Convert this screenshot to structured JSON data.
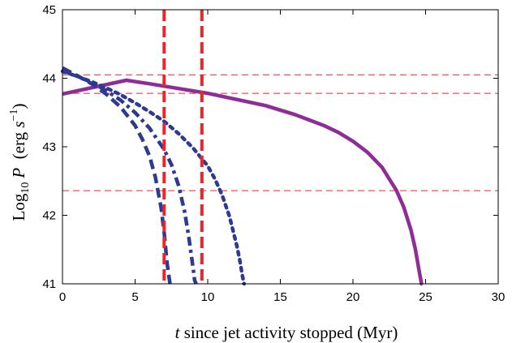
{
  "chart_data": {
    "type": "line",
    "xlabel": {
      "var": "t",
      "rest": " since jet activity stopped (Myr)"
    },
    "ylabel": {
      "pre": "Log",
      "sub": "10",
      "var": "P",
      "unit_open": "  (erg ",
      "unit_var": "s",
      "unit_exp": "−1",
      "unit_close": ")"
    },
    "xlim": [
      0,
      30
    ],
    "ylim": [
      41,
      45
    ],
    "xticks": [
      0,
      5,
      10,
      15,
      20,
      25,
      30
    ],
    "yticks": [
      41,
      42,
      43,
      44,
      45
    ],
    "grid": false,
    "series": [
      {
        "style": "solid",
        "color": "#8e2d96",
        "x": [
          0,
          4.4,
          6,
          8,
          10,
          12,
          14,
          16,
          18,
          19,
          20,
          21,
          22,
          23,
          23.5,
          24,
          24.3,
          24.55,
          24.72,
          24.78
        ],
        "y": [
          43.77,
          43.97,
          43.92,
          43.85,
          43.78,
          43.69,
          43.6,
          43.47,
          43.31,
          43.21,
          43.08,
          42.92,
          42.7,
          42.36,
          42.12,
          41.78,
          41.5,
          41.2,
          41.0,
          41.0
        ]
      },
      {
        "style": "dotted",
        "color": "#2e3a92",
        "x": [
          0,
          1,
          2,
          3,
          4,
          5,
          6,
          7,
          8,
          9,
          10,
          10.5,
          11,
          11.5,
          12,
          12.2,
          12.4,
          12.5
        ],
        "y": [
          44.1,
          44.03,
          43.95,
          43.86,
          43.76,
          43.64,
          43.51,
          43.37,
          43.19,
          42.98,
          42.72,
          42.53,
          42.29,
          41.98,
          41.56,
          41.35,
          41.1,
          41.0
        ]
      },
      {
        "style": "dashdot",
        "color": "#2e3a92",
        "x": [
          0,
          1,
          2,
          3,
          4,
          5,
          6,
          7,
          7.5,
          8,
          8.4,
          8.7,
          9,
          9.1,
          9.2
        ],
        "y": [
          44.12,
          44.03,
          43.94,
          43.82,
          43.68,
          43.5,
          43.27,
          42.96,
          42.74,
          42.43,
          42.06,
          41.68,
          41.22,
          41.05,
          41.0
        ]
      },
      {
        "style": "dashed",
        "color": "#2e3a92",
        "x": [
          0,
          1,
          2,
          3,
          4,
          5,
          5.5,
          6,
          6.4,
          6.8,
          7.0,
          7.2,
          7.4
        ],
        "y": [
          44.15,
          44.04,
          43.92,
          43.77,
          43.58,
          43.31,
          43.11,
          42.86,
          42.55,
          42.1,
          41.75,
          41.3,
          41.0
        ]
      }
    ],
    "vlines": [
      {
        "x": 7.0,
        "color": "#e8262b",
        "style": "dashed"
      },
      {
        "x": 9.6,
        "color": "#e8262b",
        "style": "dashed"
      }
    ],
    "hlines": [
      {
        "y": 44.05,
        "color": "#e8262b",
        "style": "dashed"
      },
      {
        "y": 43.78,
        "color": "#e8262b",
        "style": "dashed"
      },
      {
        "y": 42.36,
        "color": "#e8262b",
        "style": "dashed"
      }
    ]
  }
}
